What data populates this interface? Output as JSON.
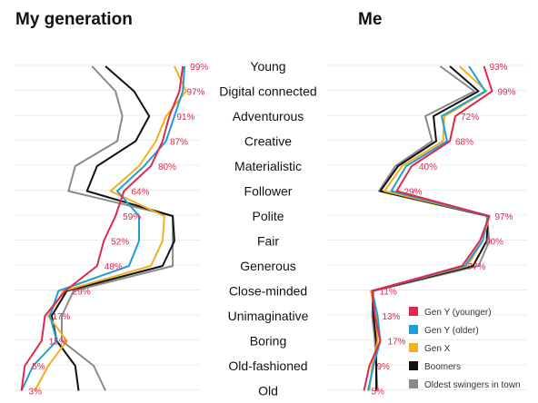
{
  "chart_data": [
    {
      "type": "line",
      "title": "My generation",
      "orientation": "vertical-categories",
      "categories": [
        "Young",
        "Digital connected",
        "Adventurous",
        "Creative",
        "Materialistic",
        "Follower",
        "Polite",
        "Fair",
        "Generous",
        "Close-minded",
        "Unimaginative",
        "Boring",
        "Old-fashioned",
        "Old"
      ],
      "xlim": [
        0,
        100
      ],
      "grid": true,
      "series": [
        {
          "name": "Gen Y (younger)",
          "color": "#e0284f",
          "values": [
            99,
            97,
            91,
            87,
            80,
            64,
            59,
            52,
            48,
            29,
            17,
            15,
            5,
            3
          ]
        },
        {
          "name": "Gen Y (older)",
          "color": "#1e9ed6",
          "values": [
            100,
            99,
            94,
            89,
            76,
            60,
            73,
            73,
            67,
            25,
            20,
            24,
            10,
            3
          ]
        },
        {
          "name": "Gen X",
          "color": "#f2b01e",
          "values": [
            94,
            101,
            89,
            83,
            73,
            56,
            88,
            87,
            80,
            28,
            19,
            30,
            19,
            11
          ]
        },
        {
          "name": "Boomers",
          "color": "#111111",
          "values": [
            53,
            70,
            79,
            71,
            48,
            42,
            93,
            94,
            87,
            30,
            21,
            24,
            35,
            37
          ]
        },
        {
          "name": "Oldest swingers in town",
          "color": "#8a8a8a",
          "values": [
            45,
            59,
            63,
            60,
            35,
            31,
            93,
            93,
            93,
            34,
            27,
            27,
            46,
            53
          ]
        }
      ],
      "data_labels": [
        "99%",
        "97%",
        "91%",
        "87%",
        "80%",
        "64%",
        "59%",
        "52%",
        "48%",
        "29%",
        "17%",
        "15%",
        "5%",
        "3%"
      ]
    },
    {
      "type": "line",
      "title": "Me",
      "orientation": "vertical-categories",
      "categories": [
        "Young",
        "Digital connected",
        "Adventurous",
        "Creative",
        "Materialistic",
        "Follower",
        "Polite",
        "Fair",
        "Generous",
        "Close-minded",
        "Unimaginative",
        "Boring",
        "Old-fashioned",
        "Old"
      ],
      "xlim": [
        0,
        100
      ],
      "grid": true,
      "legend": "bottom-right",
      "series": [
        {
          "name": "Gen Y (younger)",
          "color": "#e0284f",
          "values": [
            93,
            99,
            72,
            68,
            40,
            29,
            97,
            90,
            77,
            11,
            13,
            17,
            9,
            5
          ]
        },
        {
          "name": "Gen Y (older)",
          "color": "#1e9ed6",
          "values": [
            82,
            94,
            62,
            66,
            36,
            25,
            96,
            92,
            79,
            11,
            15,
            17,
            12,
            8
          ]
        },
        {
          "name": "Gen X",
          "color": "#f2b01e",
          "values": [
            75,
            95,
            64,
            63,
            33,
            20,
            97,
            92,
            81,
            10,
            14,
            15,
            11,
            9
          ]
        },
        {
          "name": "Boomers",
          "color": "#111111",
          "values": [
            68,
            89,
            56,
            58,
            30,
            17,
            96,
            95,
            85,
            11,
            12,
            14,
            14,
            14
          ]
        },
        {
          "name": "Oldest swingers in town",
          "color": "#8a8a8a",
          "values": [
            61,
            86,
            50,
            55,
            28,
            16,
            95,
            97,
            89,
            12,
            11,
            13,
            14,
            15
          ]
        }
      ],
      "data_labels": [
        "93%",
        "99%",
        "72%",
        "68%",
        "40%",
        "29%",
        "97%",
        "90%",
        "77%",
        "11%",
        "13%",
        "17%",
        "9%",
        "5%"
      ]
    }
  ]
}
